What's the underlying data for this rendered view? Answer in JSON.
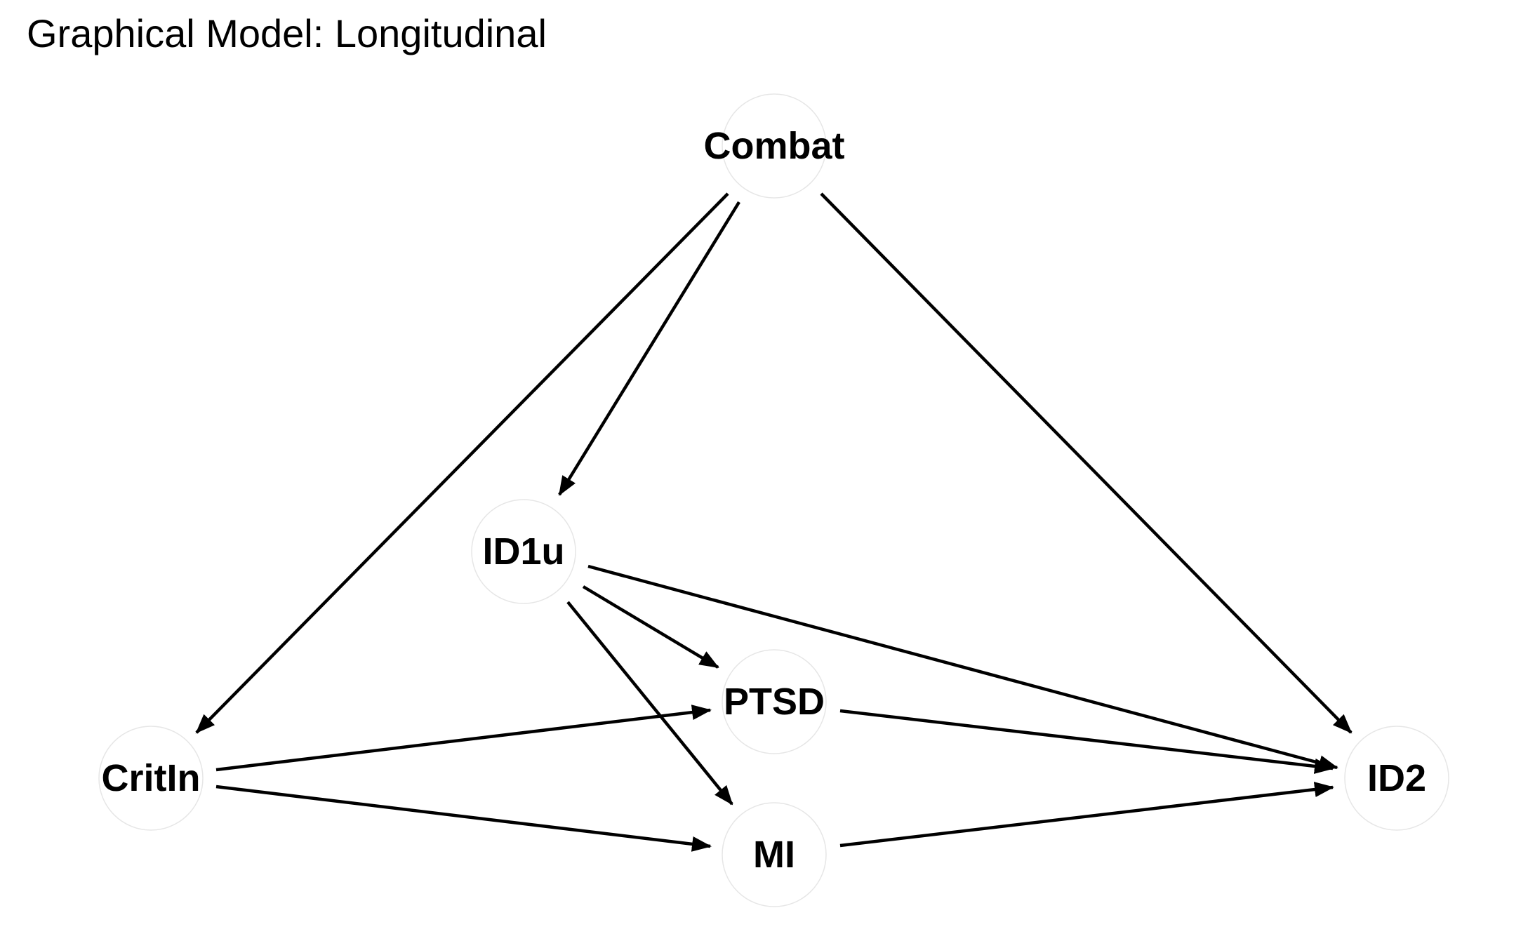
{
  "title": "Graphical Model: Longitudinal",
  "nodes": [
    {
      "id": "combat",
      "label": "Combat"
    },
    {
      "id": "id1u",
      "label": "ID1u"
    },
    {
      "id": "ptsd",
      "label": "PTSD"
    },
    {
      "id": "critin",
      "label": "CritIn"
    },
    {
      "id": "mi",
      "label": "MI"
    },
    {
      "id": "id2",
      "label": "ID2"
    }
  ],
  "edges": [
    {
      "from": "combat",
      "to": "critin"
    },
    {
      "from": "combat",
      "to": "id1u"
    },
    {
      "from": "combat",
      "to": "id2"
    },
    {
      "from": "id1u",
      "to": "ptsd"
    },
    {
      "from": "id1u",
      "to": "mi"
    },
    {
      "from": "id1u",
      "to": "id2"
    },
    {
      "from": "critin",
      "to": "ptsd"
    },
    {
      "from": "critin",
      "to": "mi"
    },
    {
      "from": "ptsd",
      "to": "id2"
    },
    {
      "from": "mi",
      "to": "id2"
    }
  ],
  "colors": {
    "edge": "#000000",
    "node_outline": "#e6e6e6",
    "text": "#000000"
  }
}
